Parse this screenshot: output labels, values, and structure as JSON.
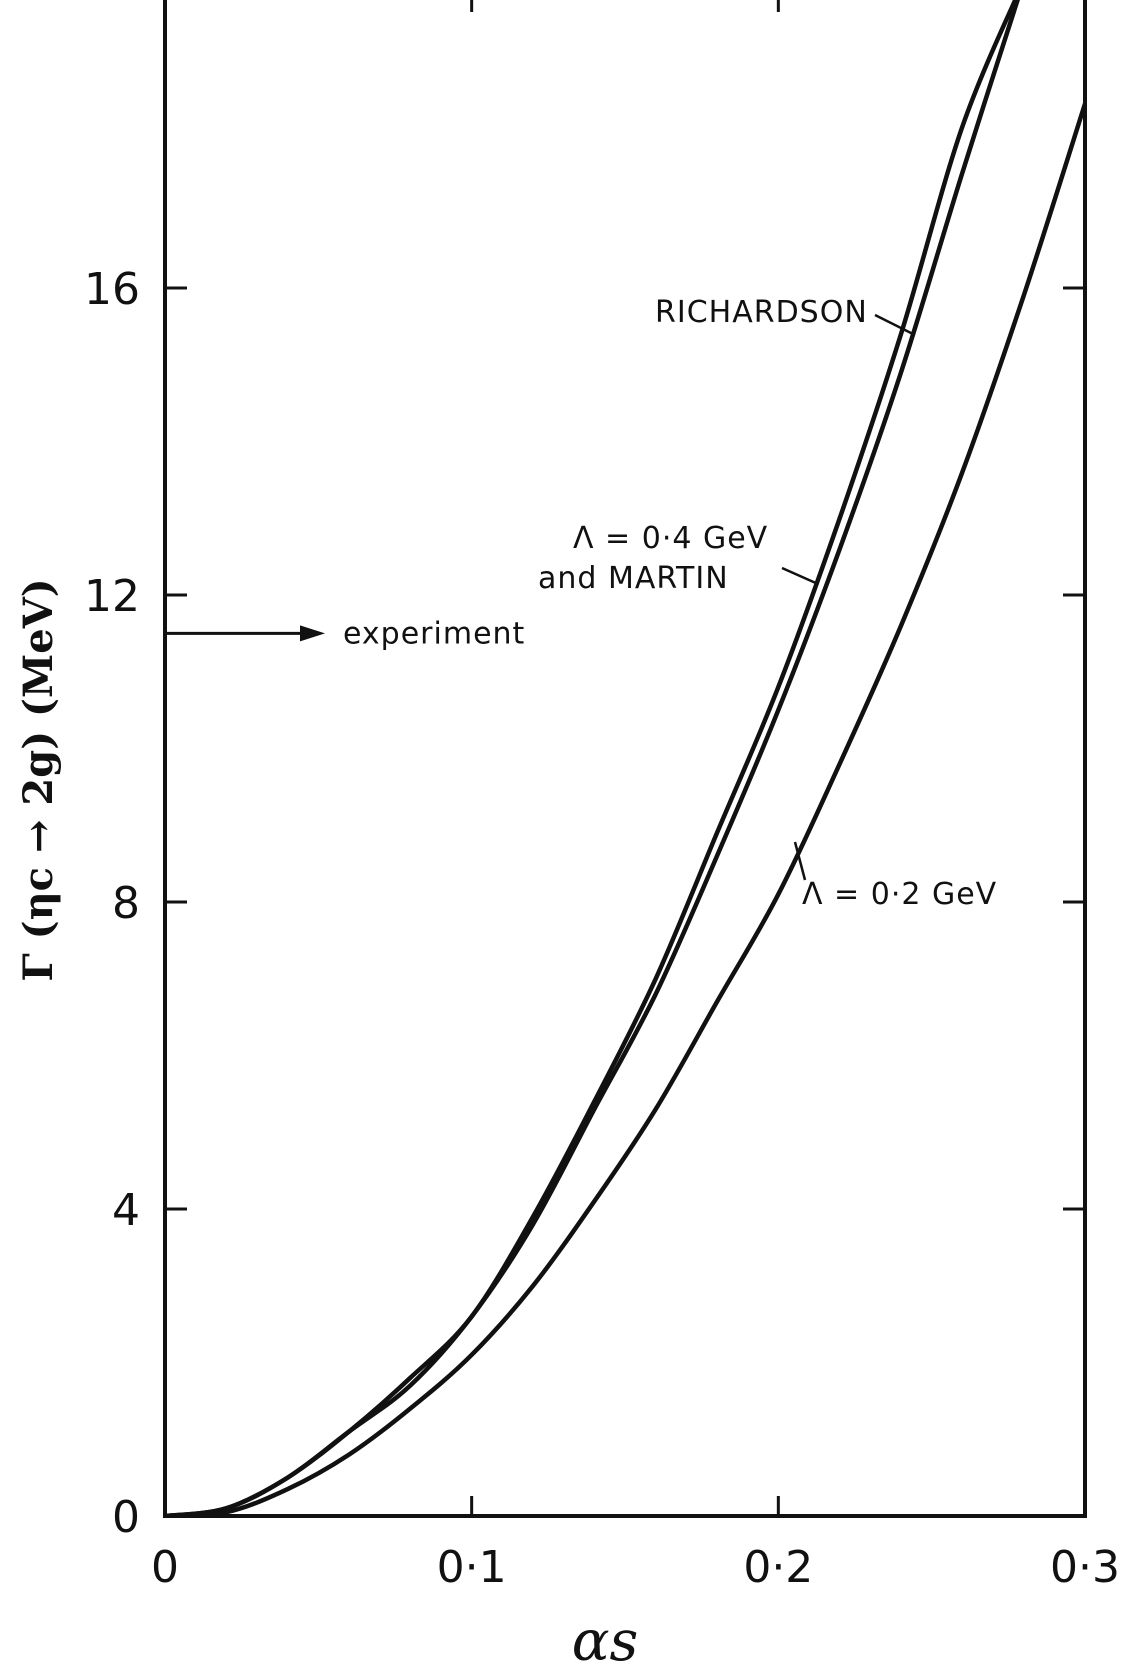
{
  "chart_data": {
    "type": "line",
    "title": "",
    "xlabel": "αs",
    "ylabel": "Γ (ηc → 2g) (MeV)",
    "xlim": [
      0,
      0.3
    ],
    "ylim": [
      0,
      20
    ],
    "x_ticks": [
      "0",
      "0·1",
      "0·2",
      "0·3"
    ],
    "y_ticks": [
      "0",
      "4",
      "8",
      "12",
      "16"
    ],
    "grid": false,
    "series": [
      {
        "name": "RICHARDSON",
        "x": [
          0,
          0.02,
          0.04,
          0.06,
          0.08,
          0.1,
          0.12,
          0.14,
          0.16,
          0.18,
          0.2,
          0.22,
          0.24,
          0.26,
          0.28
        ],
        "values": [
          0,
          0.1,
          0.5,
          1.1,
          1.8,
          2.6,
          3.9,
          5.4,
          7.0,
          8.9,
          10.8,
          13.0,
          15.4,
          18.1,
          20.0
        ]
      },
      {
        "name": "Λ = 0·4 GeV and MARTIN",
        "x": [
          0,
          0.02,
          0.04,
          0.06,
          0.08,
          0.1,
          0.12,
          0.14,
          0.16,
          0.18,
          0.2,
          0.22,
          0.24,
          0.26,
          0.28
        ],
        "values": [
          0,
          0.1,
          0.5,
          1.1,
          1.7,
          2.6,
          3.8,
          5.3,
          6.8,
          8.6,
          10.5,
          12.6,
          14.9,
          17.5,
          20.0
        ]
      },
      {
        "name": "Λ = 0·2 GeV",
        "x": [
          0,
          0.02,
          0.04,
          0.06,
          0.08,
          0.1,
          0.12,
          0.14,
          0.16,
          0.18,
          0.2,
          0.22,
          0.24,
          0.26,
          0.28,
          0.3
        ],
        "values": [
          0,
          0.05,
          0.35,
          0.8,
          1.4,
          2.1,
          3.0,
          4.1,
          5.3,
          6.7,
          8.1,
          9.8,
          11.6,
          13.6,
          15.9,
          18.4
        ]
      }
    ],
    "annotations": [
      {
        "text": "experiment",
        "value": 11.5
      },
      {
        "text": "RICHARDSON"
      },
      {
        "text_line1": "Λ = 0·4 GeV",
        "text_line2": "and MARTIN"
      },
      {
        "text": "Λ = 0·2 GeV"
      }
    ]
  }
}
